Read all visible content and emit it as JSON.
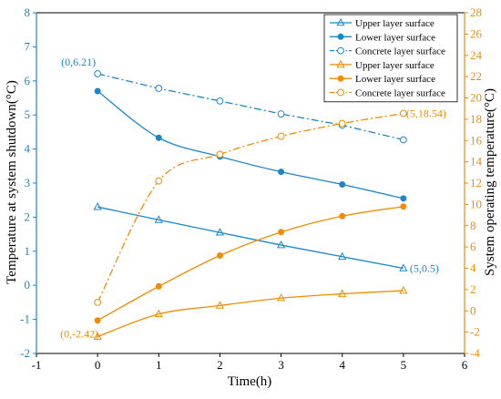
{
  "chart_data": {
    "type": "line",
    "xlabel": "Time(h)",
    "ylabel_left": "Temperature at system shutdown(°C)",
    "ylabel_right": "System operating temperature(°C)",
    "x_ticks": [
      -1,
      0,
      1,
      2,
      3,
      4,
      5,
      6
    ],
    "left_ticks": [
      -2,
      -1,
      0,
      1,
      2,
      3,
      4,
      5,
      6,
      7,
      8
    ],
    "right_ticks": [
      -4,
      -2,
      0,
      2,
      4,
      6,
      8,
      10,
      12,
      14,
      16,
      18,
      20,
      22,
      24,
      26,
      28
    ],
    "xlim": [
      -1,
      6
    ],
    "ylim_left": [
      -2,
      8
    ],
    "ylim_right": [
      -4,
      28
    ],
    "colors": {
      "left": "#1a87c8",
      "right": "#f08c00"
    },
    "legend_position": "top-right",
    "series": [
      {
        "name": "Upper layer surface",
        "axis": "left",
        "marker": "triangle",
        "style": "solid",
        "smooth": false,
        "x": [
          0,
          1,
          2,
          3,
          4,
          5
        ],
        "y": [
          2.3,
          1.92,
          1.55,
          1.18,
          0.84,
          0.5
        ]
      },
      {
        "name": "Lower layer surface",
        "axis": "left",
        "marker": "circle-filled",
        "style": "solid",
        "smooth": true,
        "x": [
          0,
          1,
          2,
          3,
          4,
          5
        ],
        "y": [
          5.7,
          4.33,
          3.78,
          3.33,
          2.96,
          2.55
        ]
      },
      {
        "name": "Concrete layer surface",
        "axis": "left",
        "marker": "circle-open",
        "style": "dashdot",
        "smooth": false,
        "x": [
          0,
          1,
          2,
          3,
          4,
          5
        ],
        "y": [
          6.21,
          5.78,
          5.41,
          5.03,
          4.7,
          4.27
        ]
      },
      {
        "name": "Upper layer surface",
        "axis": "right",
        "marker": "triangle",
        "style": "solid",
        "smooth": true,
        "x": [
          0,
          1,
          2,
          3,
          4,
          5
        ],
        "y": [
          -2.42,
          -0.3,
          0.5,
          1.2,
          1.6,
          1.9
        ]
      },
      {
        "name": "Lower layer surface",
        "axis": "right",
        "marker": "circle-filled",
        "style": "solid",
        "smooth": true,
        "x": [
          0,
          1,
          2,
          3,
          4,
          5
        ],
        "y": [
          -0.9,
          2.3,
          5.2,
          7.4,
          8.9,
          9.8
        ]
      },
      {
        "name": "Concrete layer surface",
        "axis": "right",
        "marker": "circle-open",
        "style": "dashdot",
        "smooth": true,
        "x": [
          0,
          1,
          2,
          3,
          4,
          5
        ],
        "y": [
          0.8,
          12.2,
          14.7,
          16.4,
          17.6,
          18.54
        ]
      }
    ],
    "annotations": [
      {
        "text": "(0,6.21)",
        "axis": "left",
        "x": 0,
        "y": 6.21
      },
      {
        "text": "(5,0.5)",
        "axis": "left",
        "x": 5,
        "y": 0.5
      },
      {
        "text": "(0,-2.42)",
        "axis": "right",
        "x": 0,
        "y": -2.42
      },
      {
        "text": "(5,18.54)",
        "axis": "right",
        "x": 5,
        "y": 18.54
      }
    ]
  }
}
